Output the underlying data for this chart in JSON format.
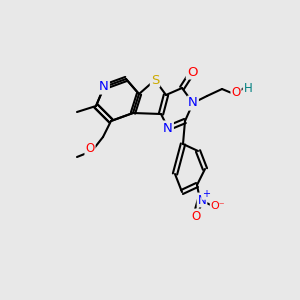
{
  "background_color": "#e8e8e8",
  "bond_color": "#000000",
  "atom_colors": {
    "N": "#0000ff",
    "O": "#ff0000",
    "S": "#ccaa00",
    "H": "#008080",
    "C": "#000000"
  },
  "title": "",
  "figsize": [
    3.0,
    3.0
  ],
  "dpi": 100
}
